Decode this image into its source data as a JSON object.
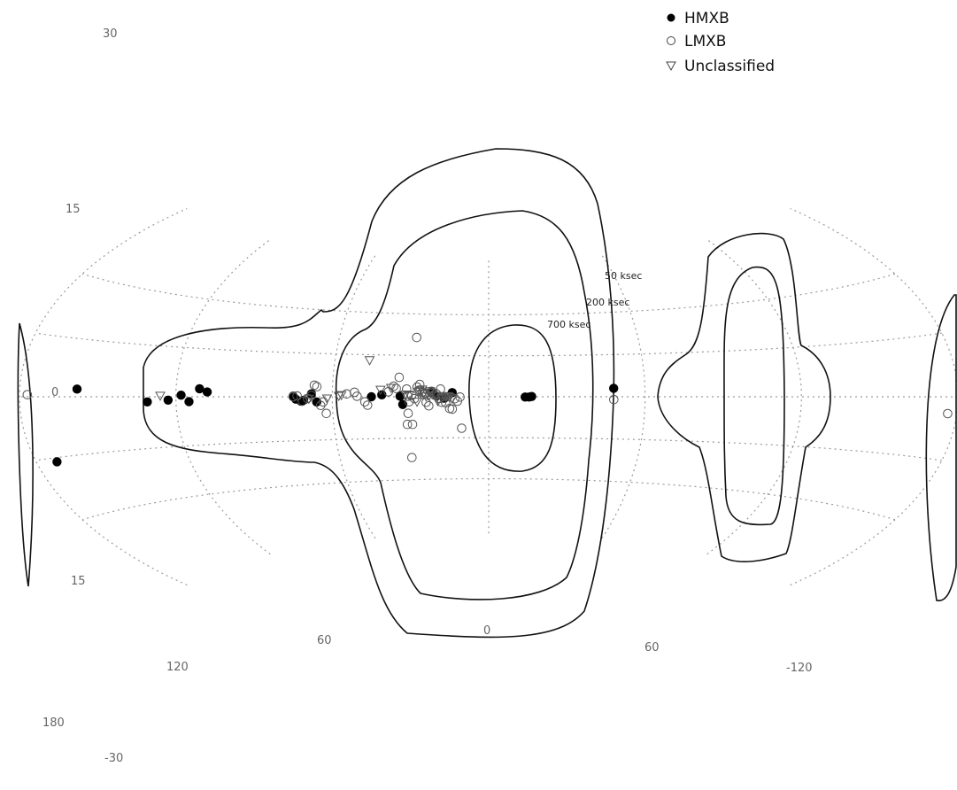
{
  "chart_data": {
    "type": "scatter",
    "projection": "Aitoff (galactic coordinates)",
    "longitude_ticks": [
      "180",
      "120",
      "60",
      "0",
      "60",
      "-120"
    ],
    "latitude_ticks": [
      "30",
      "15",
      "0",
      "15",
      "-30"
    ],
    "legend": {
      "placement": "top-right",
      "entries": [
        {
          "key": "hmxb",
          "label": "HMXB",
          "marker": "filled-circle"
        },
        {
          "key": "lmxb",
          "label": "LMXB",
          "marker": "open-circle"
        },
        {
          "key": "uncl",
          "label": "Unclassified",
          "marker": "open-triangle-down"
        }
      ]
    },
    "contour_labels": [
      "50 ksec",
      "200 ksec",
      "700 ksec"
    ],
    "series": [
      {
        "name": "HMXB",
        "marker": "filled-circle",
        "points": [
          [
            158,
            2
          ],
          [
            131,
            -1.5
          ],
          [
            123,
            -1
          ],
          [
            118,
            0.5
          ],
          [
            115,
            -1.5
          ],
          [
            111,
            2.5
          ],
          [
            108,
            1.5
          ],
          [
            75,
            0.2
          ],
          [
            74,
            -0.8
          ],
          [
            72,
            -1.5
          ],
          [
            71,
            -1.2
          ],
          [
            68,
            1
          ],
          [
            66,
            -1.8
          ],
          [
            45,
            0
          ],
          [
            41,
            0.7
          ],
          [
            34,
            0.2
          ],
          [
            33,
            -2.8
          ],
          [
            22,
            1.5
          ],
          [
            20,
            0.3
          ],
          [
            17,
            -0.5
          ],
          [
            14,
            1.5
          ],
          [
            -14,
            -0.1
          ],
          [
            -15.5,
            -0.1
          ],
          [
            -16.5,
            0.1
          ],
          [
            -48,
            3
          ],
          [
            172,
            -16
          ]
        ]
      },
      {
        "name": "LMXB",
        "marker": "open-circle",
        "points": [
          [
            177,
            0.5
          ],
          [
            75,
            0
          ],
          [
            73.5,
            0.3
          ],
          [
            71.5,
            -1.5
          ],
          [
            69.5,
            -0.6
          ],
          [
            68,
            0.5
          ],
          [
            67,
            4
          ],
          [
            66,
            3.5
          ],
          [
            64.5,
            -3
          ],
          [
            63.5,
            -1.8
          ],
          [
            62.5,
            -5.8
          ],
          [
            54.5,
            1
          ],
          [
            51.5,
            1.6
          ],
          [
            50.5,
            0.2
          ],
          [
            47.5,
            -1.8
          ],
          [
            46.5,
            -3
          ],
          [
            38.5,
            1.8
          ],
          [
            36.5,
            3.8
          ],
          [
            35.5,
            3
          ],
          [
            34.5,
            7
          ],
          [
            31.5,
            2.8
          ],
          [
            31,
            0.2
          ],
          [
            30.5,
            -1.8
          ],
          [
            29.5,
            0.5
          ],
          [
            28.5,
            -0.7
          ],
          [
            27.5,
            3.5
          ],
          [
            26.5,
            4.5
          ],
          [
            26.5,
            2.4
          ],
          [
            25.5,
            1.7
          ],
          [
            25,
            0.8
          ],
          [
            24.5,
            1.2
          ],
          [
            24,
            -2
          ],
          [
            23,
            -3.3
          ],
          [
            22,
            2
          ],
          [
            21,
            0.7
          ],
          [
            20,
            1
          ],
          [
            19,
            -0.6
          ],
          [
            18.5,
            2.8
          ],
          [
            18,
            -2
          ],
          [
            16.5,
            -2.2
          ],
          [
            15,
            -4.3
          ],
          [
            14,
            -4.5
          ],
          [
            13,
            -0.7
          ],
          [
            12,
            -1.6
          ],
          [
            11,
            -0.1
          ],
          [
            29,
            21.5
          ],
          [
            31,
            -6
          ],
          [
            31.5,
            -10
          ],
          [
            29.5,
            -10
          ],
          [
            10.5,
            -11.5
          ],
          [
            31,
            -22
          ],
          [
            -48,
            -1
          ],
          [
            -176.5,
            -4
          ]
        ]
      },
      {
        "name": "Unclassified",
        "marker": "open-triangle-down",
        "points": [
          [
            126,
            0.3
          ],
          [
            69,
            -0.7
          ],
          [
            62,
            -0.6
          ],
          [
            57.5,
            0.3
          ],
          [
            56.5,
            0.6
          ],
          [
            46.5,
            13
          ],
          [
            41.5,
            2.5
          ],
          [
            37.5,
            3.2
          ],
          [
            32,
            0.8
          ],
          [
            30.5,
            0.5
          ],
          [
            27.5,
            -1.8
          ],
          [
            27,
            1.8
          ],
          [
            26.5,
            2.2
          ],
          [
            25.5,
            2.6
          ],
          [
            25,
            1.1
          ],
          [
            24,
            0.1
          ],
          [
            23,
            0.3
          ],
          [
            22.5,
            2
          ],
          [
            21.5,
            1.5
          ],
          [
            20,
            0.3
          ],
          [
            19.5,
            -1.6
          ],
          [
            18,
            -0.6
          ],
          [
            17,
            0.1
          ],
          [
            16.5,
            0.1
          ],
          [
            16,
            0.2
          ],
          [
            15.5,
            0.2
          ],
          [
            15,
            -0.2
          ],
          [
            14,
            -0.7
          ]
        ]
      }
    ]
  }
}
